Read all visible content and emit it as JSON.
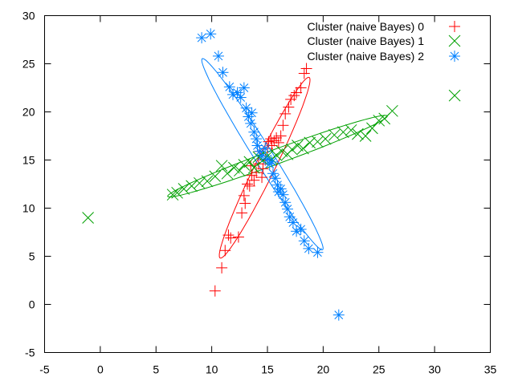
{
  "chart_data": {
    "type": "scatter",
    "title": "",
    "xlabel": "",
    "ylabel": "",
    "xlim": [
      -5,
      35
    ],
    "ylim": [
      -5,
      30
    ],
    "x_ticks": [
      -5,
      0,
      5,
      10,
      15,
      20,
      25,
      30,
      35
    ],
    "y_ticks": [
      -5,
      0,
      5,
      10,
      15,
      20,
      25,
      30
    ],
    "x_tick_labels": [
      "-5",
      "0",
      "5",
      "10",
      "15",
      "20",
      "25",
      "30",
      "35"
    ],
    "y_tick_labels": [
      "-5",
      "0",
      "5",
      "10",
      "15",
      "20",
      "25",
      "30"
    ],
    "grid": false,
    "legend_position": "top-right",
    "series": [
      {
        "name": "Cluster (naive Bayes) 0",
        "color": "#ff0000",
        "marker": "plus",
        "points": [
          [
            10.3,
            1.4
          ],
          [
            10.9,
            3.8
          ],
          [
            11.2,
            5.6
          ],
          [
            11.5,
            7.2
          ],
          [
            11.7,
            6.9
          ],
          [
            12.4,
            7.0
          ],
          [
            12.7,
            9.5
          ],
          [
            13.0,
            10.5
          ],
          [
            12.9,
            11.3
          ],
          [
            13.2,
            12.5
          ],
          [
            13.4,
            12.3
          ],
          [
            13.6,
            13.4
          ],
          [
            13.5,
            14.4
          ],
          [
            13.8,
            12.9
          ],
          [
            14.0,
            13.7
          ],
          [
            14.2,
            14.6
          ],
          [
            14.3,
            15.9
          ],
          [
            14.5,
            13.2
          ],
          [
            14.6,
            14.1
          ],
          [
            14.8,
            15.0
          ],
          [
            15.0,
            16.2
          ],
          [
            15.1,
            16.9
          ],
          [
            15.3,
            17.2
          ],
          [
            15.4,
            16.5
          ],
          [
            15.6,
            17.0
          ],
          [
            15.8,
            17.3
          ],
          [
            16.0,
            16.8
          ],
          [
            16.2,
            17.5
          ],
          [
            16.4,
            18.6
          ],
          [
            16.6,
            19.8
          ],
          [
            16.9,
            20.5
          ],
          [
            17.1,
            21.3
          ],
          [
            17.4,
            21.7
          ],
          [
            17.6,
            22.0
          ],
          [
            18.0,
            22.5
          ],
          [
            18.3,
            24.0
          ],
          [
            18.5,
            24.5
          ]
        ]
      },
      {
        "name": "Cluster (naive Bayes) 1",
        "color": "#00a000",
        "marker": "x",
        "points": [
          [
            -1.1,
            9.0
          ],
          [
            6.5,
            11.4
          ],
          [
            6.9,
            11.6
          ],
          [
            7.5,
            12.0
          ],
          [
            8.2,
            12.3
          ],
          [
            8.9,
            12.6
          ],
          [
            9.6,
            12.8
          ],
          [
            10.3,
            13.3
          ],
          [
            10.9,
            14.4
          ],
          [
            11.4,
            13.6
          ],
          [
            12.0,
            14.2
          ],
          [
            12.5,
            13.9
          ],
          [
            12.9,
            14.5
          ],
          [
            13.4,
            14.8
          ],
          [
            13.8,
            14.2
          ],
          [
            14.2,
            15.3
          ],
          [
            14.6,
            15.0
          ],
          [
            15.0,
            15.4
          ],
          [
            15.4,
            15.1
          ],
          [
            15.8,
            15.5
          ],
          [
            16.3,
            15.9
          ],
          [
            16.8,
            15.6
          ],
          [
            17.2,
            16.1
          ],
          [
            17.7,
            16.5
          ],
          [
            18.2,
            16.2
          ],
          [
            18.8,
            16.8
          ],
          [
            19.5,
            16.9
          ],
          [
            20.2,
            17.2
          ],
          [
            21.0,
            17.6
          ],
          [
            21.8,
            17.9
          ],
          [
            22.5,
            18.1
          ],
          [
            23.1,
            17.7
          ],
          [
            23.8,
            17.5
          ],
          [
            24.4,
            18.3
          ],
          [
            25.0,
            19.1
          ],
          [
            25.5,
            19.3
          ],
          [
            26.2,
            20.1
          ],
          [
            31.8,
            21.7
          ]
        ]
      },
      {
        "name": "Cluster (naive Bayes) 2",
        "color": "#0080ff",
        "marker": "star",
        "points": [
          [
            9.1,
            27.7
          ],
          [
            9.9,
            28.1
          ],
          [
            10.6,
            25.8
          ],
          [
            11.0,
            24.1
          ],
          [
            11.6,
            22.6
          ],
          [
            11.9,
            21.8
          ],
          [
            12.3,
            22.0
          ],
          [
            12.6,
            21.5
          ],
          [
            12.9,
            22.5
          ],
          [
            13.1,
            20.4
          ],
          [
            13.3,
            19.5
          ],
          [
            13.5,
            18.8
          ],
          [
            13.6,
            19.9
          ],
          [
            13.8,
            17.9
          ],
          [
            14.0,
            17.2
          ],
          [
            14.1,
            16.5
          ],
          [
            14.3,
            15.9
          ],
          [
            14.5,
            15.4
          ],
          [
            14.8,
            16.2
          ],
          [
            15.0,
            15.1
          ],
          [
            15.2,
            14.6
          ],
          [
            15.4,
            14.8
          ],
          [
            15.5,
            13.6
          ],
          [
            15.7,
            13.1
          ],
          [
            15.9,
            12.4
          ],
          [
            16.0,
            11.7
          ],
          [
            16.2,
            12.0
          ],
          [
            16.4,
            11.4
          ],
          [
            16.6,
            10.6
          ],
          [
            16.8,
            9.9
          ],
          [
            17.0,
            9.1
          ],
          [
            17.3,
            8.5
          ],
          [
            17.6,
            7.6
          ],
          [
            18.0,
            7.8
          ],
          [
            18.3,
            6.6
          ],
          [
            18.7,
            5.8
          ],
          [
            19.5,
            5.4
          ],
          [
            21.4,
            -1.1
          ]
        ]
      }
    ],
    "ellipses": [
      {
        "color": "#ff0000",
        "cx": 14.75,
        "cy": 14.2,
        "semi_major": 10.2,
        "semi_minor": 0.9,
        "angle_deg": 67
      },
      {
        "color": "#00a000",
        "cx": 15.9,
        "cy": 15.4,
        "semi_major": 10.7,
        "semi_minor": 0.75,
        "angle_deg": 23
      },
      {
        "color": "#0080ff",
        "cx": 14.55,
        "cy": 15.6,
        "semi_major": 11.3,
        "semi_minor": 0.85,
        "angle_deg": -61.5
      }
    ]
  }
}
